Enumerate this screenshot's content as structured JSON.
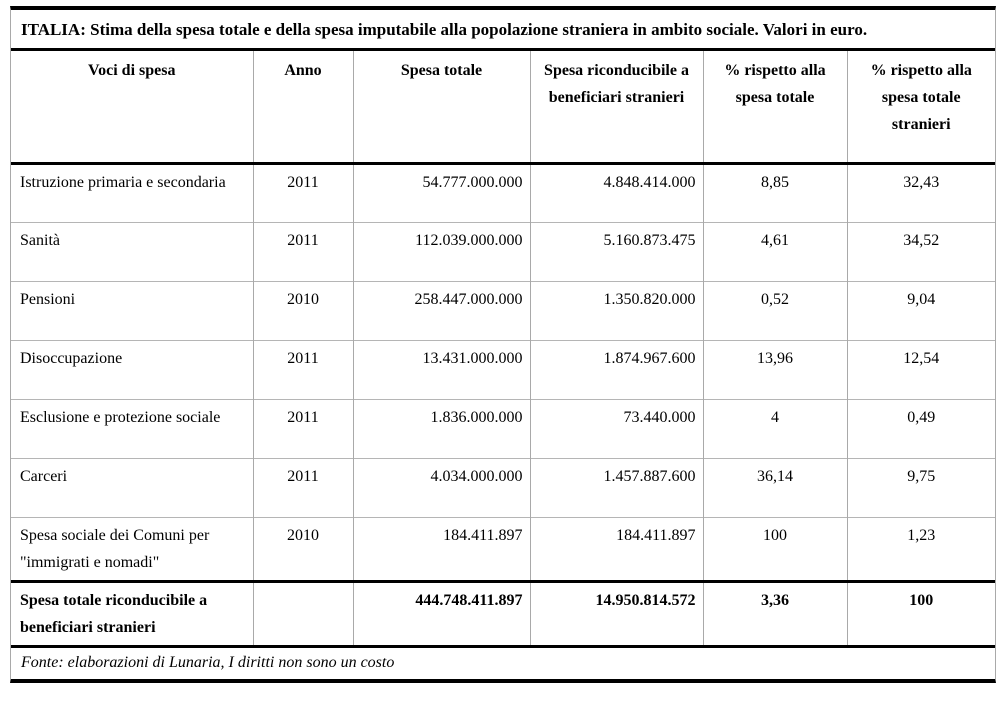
{
  "title": "ITALIA: Stima della spesa totale e della spesa imputabile alla popolazione straniera in ambito sociale. Valori in euro.",
  "table": {
    "columns": [
      "Voci di spesa",
      "Anno",
      "Spesa totale",
      "Spesa riconducibile a beneficiari stranieri",
      "% rispetto alla spesa totale",
      "% rispetto alla spesa totale stranieri"
    ],
    "rows": [
      {
        "voce": "Istruzione primaria e secondaria",
        "anno": "2011",
        "spesa_totale": "54.777.000.000",
        "spesa_stranieri": "4.848.414.000",
        "pct_totale": "8,85",
        "pct_stranieri": "32,43"
      },
      {
        "voce": "Sanità",
        "anno": "2011",
        "spesa_totale": "112.039.000.000",
        "spesa_stranieri": "5.160.873.475",
        "pct_totale": "4,61",
        "pct_stranieri": "34,52"
      },
      {
        "voce": "Pensioni",
        "anno": "2010",
        "spesa_totale": "258.447.000.000",
        "spesa_stranieri": "1.350.820.000",
        "pct_totale": "0,52",
        "pct_stranieri": "9,04"
      },
      {
        "voce": "Disoccupazione",
        "anno": "2011",
        "spesa_totale": "13.431.000.000",
        "spesa_stranieri": "1.874.967.600",
        "pct_totale": "13,96",
        "pct_stranieri": "12,54"
      },
      {
        "voce": "Esclusione e protezione sociale",
        "anno": "2011",
        "spesa_totale": "1.836.000.000",
        "spesa_stranieri": "73.440.000",
        "pct_totale": "4",
        "pct_stranieri": "0,49"
      },
      {
        "voce": "Carceri",
        "anno": "2011",
        "spesa_totale": "4.034.000.000",
        "spesa_stranieri": "1.457.887.600",
        "pct_totale": "36,14",
        "pct_stranieri": "9,75"
      },
      {
        "voce": "Spesa sociale dei Comuni per \"immigrati e nomadi\"",
        "anno": "2010",
        "spesa_totale": "184.411.897",
        "spesa_stranieri": "184.411.897",
        "pct_totale": "100",
        "pct_stranieri": "1,23"
      }
    ],
    "total_row": {
      "voce": "Spesa totale riconducibile a beneficiari stranieri",
      "anno": "",
      "spesa_totale": "444.748.411.897",
      "spesa_stranieri": "14.950.814.572",
      "pct_totale": "3,36",
      "pct_stranieri": "100"
    },
    "footer": "Fonte: elaborazioni di Lunaria, I diritti non sono un costo"
  },
  "colors": {
    "border_strong": "#000000",
    "border_light": "#a9a9a9",
    "text": "#000000",
    "background": "#ffffff"
  }
}
